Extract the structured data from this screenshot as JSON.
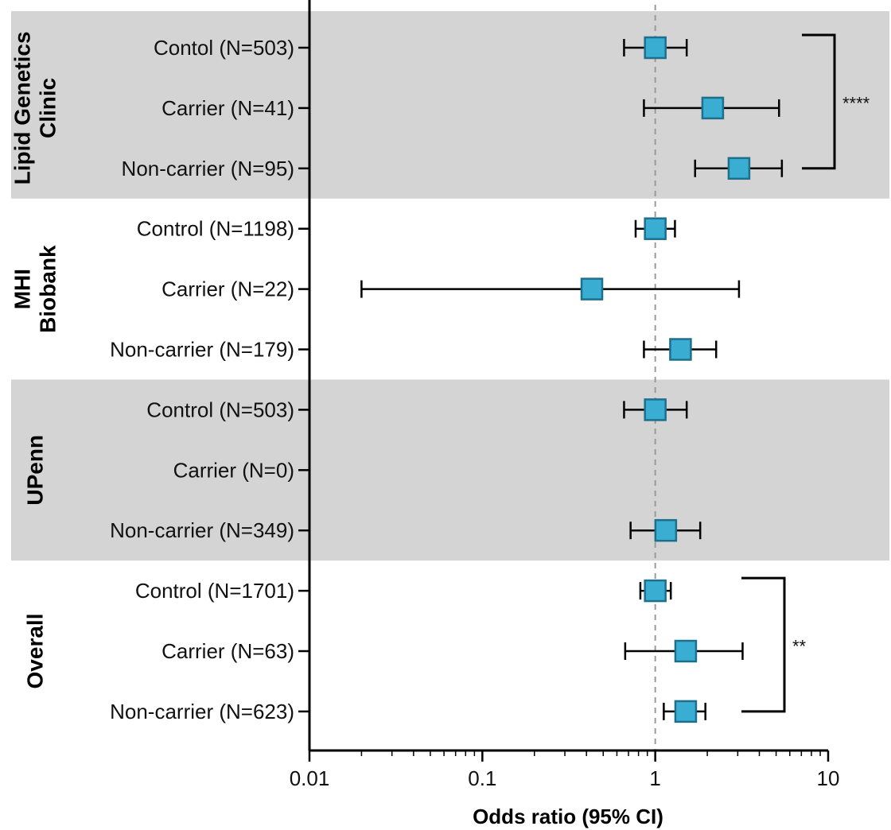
{
  "chart_data": {
    "type": "forest",
    "xlabel": "Odds ratio (95% CI)",
    "xscale": "log",
    "xlim": [
      0.01,
      10
    ],
    "xticks": [
      "0.01",
      "0.1",
      "1",
      "10"
    ],
    "reference_line": 1,
    "marker_color": "#3aaed2",
    "marker_edge_color": "#1e6f8c",
    "band_color": "#d4d4d4",
    "groups": [
      {
        "name": "Lipid Genetics Clinic",
        "label_lines": [
          "Lipid Genetics",
          "Clinic"
        ],
        "shaded": true,
        "rows": [
          {
            "label": "Contol (N=503)",
            "or": 1.0,
            "lo": 0.66,
            "hi": 1.52
          },
          {
            "label": "Carrier (N=41)",
            "or": 2.15,
            "lo": 0.86,
            "hi": 5.2
          },
          {
            "label": "Non-carrier (N=95)",
            "or": 3.05,
            "lo": 1.7,
            "hi": 5.4
          }
        ]
      },
      {
        "name": "MHI Biobank",
        "label_lines": [
          "MHI",
          "Biobank"
        ],
        "shaded": false,
        "rows": [
          {
            "label": "Control (N=1198)",
            "or": 1.0,
            "lo": 0.77,
            "hi": 1.3
          },
          {
            "label": "Carrier (N=22)",
            "or": 0.43,
            "lo": 0.02,
            "hi": 3.05
          },
          {
            "label": "Non-carrier (N=179)",
            "or": 1.4,
            "lo": 0.86,
            "hi": 2.25
          }
        ]
      },
      {
        "name": "UPenn",
        "label_lines": [
          "UPenn"
        ],
        "shaded": true,
        "rows": [
          {
            "label": "Control (N=503)",
            "or": 1.0,
            "lo": 0.66,
            "hi": 1.52
          },
          {
            "label": "Carrier (N=0)",
            "or": null,
            "lo": null,
            "hi": null
          },
          {
            "label": "Non-carrier (N=349)",
            "or": 1.15,
            "lo": 0.72,
            "hi": 1.82
          }
        ]
      },
      {
        "name": "Overall",
        "label_lines": [
          "Overall"
        ],
        "shaded": false,
        "rows": [
          {
            "label": "Control (N=1701)",
            "or": 1.0,
            "lo": 0.82,
            "hi": 1.23
          },
          {
            "label": "Carrier (N=63)",
            "or": 1.5,
            "lo": 0.67,
            "hi": 3.2
          },
          {
            "label": "Non-carrier (N=623)",
            "or": 1.5,
            "lo": 1.12,
            "hi": 1.95
          }
        ]
      }
    ],
    "significance": [
      {
        "group": 0,
        "from_row": 0,
        "to_row": 2,
        "label": "****"
      },
      {
        "group": 3,
        "from_row": 0,
        "to_row": 2,
        "label": "**"
      }
    ]
  }
}
